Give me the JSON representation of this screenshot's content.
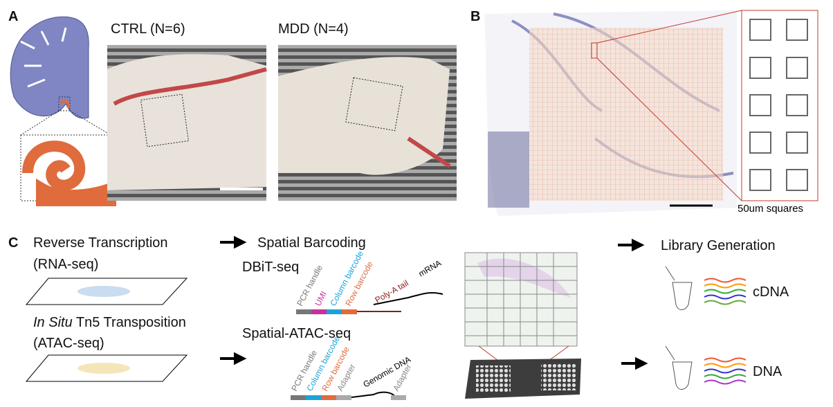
{
  "panels": {
    "a": {
      "label": "A",
      "ctrl": "CTRL (N=6)",
      "mdd": "MDD (N=4)"
    },
    "b": {
      "label": "B",
      "scale_note": "50um squares"
    },
    "c": {
      "label": "C",
      "rt": {
        "title": "Reverse Transcription",
        "sub": "(RNA-seq)"
      },
      "tn5": {
        "italic": "In Situ",
        "rest": " Tn5 Transposition",
        "sub": "(ATAC-seq)"
      },
      "barcoding": "Spatial Barcoding",
      "dbit": {
        "title": "DBiT-seq",
        "parts": [
          "PCR handle",
          "UMI",
          "Column barcode",
          "Row barcode",
          "Poly-A tail"
        ],
        "strand": "mRNA"
      },
      "atac": {
        "title": "Spatial-ATAC-seq",
        "parts": [
          "PCR handle",
          "Column barcode",
          "Row barcode",
          "Adapter"
        ],
        "genomic": "Genomic DNA",
        "adapter2": "Adapter"
      },
      "library": "Library Generation",
      "cdna": "cDNA",
      "dna": "DNA"
    }
  }
}
